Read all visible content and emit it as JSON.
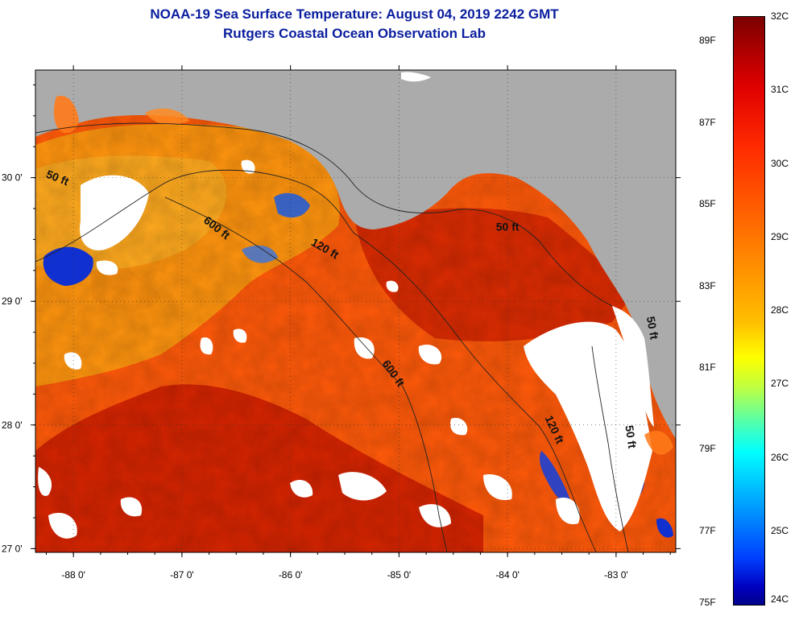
{
  "title": {
    "line1": "NOAA-19 Sea Surface Temperature:  August 04, 2019 2242 GMT",
    "line2": "Rutgers Coastal Ocean Observation Lab"
  },
  "map": {
    "lon_range": [
      -88.35,
      -82.45
    ],
    "lat_range": [
      26.97,
      30.87
    ],
    "lon_ticks": [
      {
        "value": -88,
        "label": "-88 0'"
      },
      {
        "value": -87,
        "label": "-87 0'"
      },
      {
        "value": -86,
        "label": "-86 0'"
      },
      {
        "value": -85,
        "label": "-85 0'"
      },
      {
        "value": -84,
        "label": "-84 0'"
      },
      {
        "value": -83,
        "label": "-83 0'"
      }
    ],
    "lat_ticks": [
      {
        "value": 30,
        "label": "30 0'"
      },
      {
        "value": 29,
        "label": "29 0'"
      },
      {
        "value": 28,
        "label": "28 0'"
      },
      {
        "value": 27,
        "label": "27 0'"
      }
    ],
    "contour_labels": [
      {
        "text": "50 ft",
        "lon": -88.16,
        "lat": 29.97,
        "rotate": 22
      },
      {
        "text": "600 ft",
        "lon": -86.7,
        "lat": 29.57,
        "rotate": 38
      },
      {
        "text": "120 ft",
        "lon": -85.7,
        "lat": 29.4,
        "rotate": 30
      },
      {
        "text": "50 ft",
        "lon": -84.0,
        "lat": 29.57,
        "rotate": 0
      },
      {
        "text": "600 ft",
        "lon": -85.08,
        "lat": 28.4,
        "rotate": 55
      },
      {
        "text": "120 ft",
        "lon": -83.6,
        "lat": 27.95,
        "rotate": 65
      },
      {
        "text": "50 ft",
        "lon": -82.9,
        "lat": 27.9,
        "rotate": 82
      },
      {
        "text": "50 ft",
        "lon": -82.7,
        "lat": 28.78,
        "rotate": 80
      }
    ],
    "colors": {
      "land": "#ababab",
      "cloud": "#ffffff",
      "water_base": "#ff5a0a",
      "warm": "#c81400",
      "cool": "#ffa010",
      "cold": "#1030d0"
    }
  },
  "colorbar": {
    "fahrenheit": [
      "89F",
      "87F",
      "85F",
      "83F",
      "81F",
      "79F",
      "77F",
      "75F"
    ],
    "celsius": [
      "32C",
      "31C",
      "30C",
      "29C",
      "28C",
      "27C",
      "26C",
      "25C",
      "24C"
    ]
  }
}
